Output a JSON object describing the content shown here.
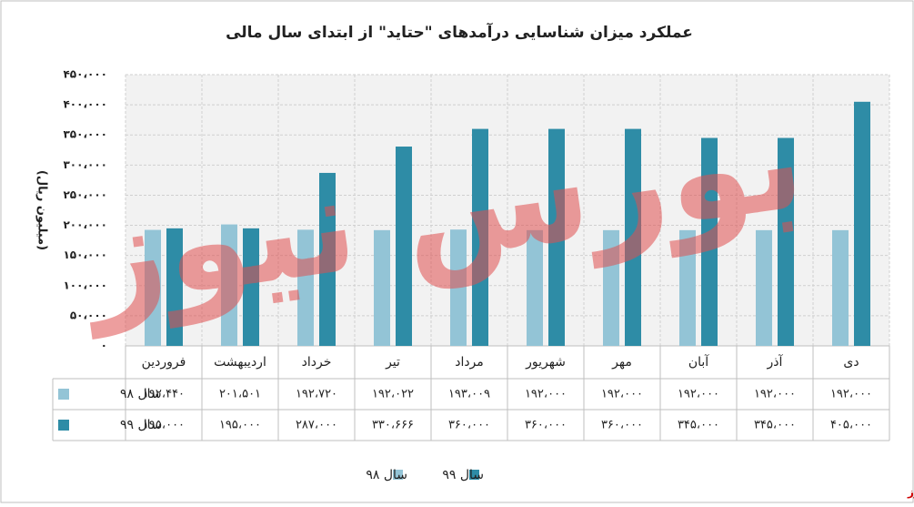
{
  "chart_data": {
    "type": "bar",
    "title": "عملکرد میزان شناسایی درآمدهای \"حتاید\" از ابتدای سال مالی",
    "y_label": "(میلیون ریال)",
    "categories": [
      "فروردین",
      "اردیبهشت",
      "خرداد",
      "تیر",
      "مرداد",
      "شهریور",
      "مهر",
      "آبان",
      "آذر",
      "دی"
    ],
    "series": [
      {
        "name": "سال ۹۸",
        "color": "#93c4d6",
        "values": [
          192440,
          201501,
          192720,
          192022,
          193009,
          192000,
          192000,
          192000,
          192000,
          192000
        ],
        "value_labels": [
          "۱۹۲،۴۴۰",
          "۲۰۱،۵۰۱",
          "۱۹۲،۷۲۰",
          "۱۹۲،۰۲۲",
          "۱۹۳،۰۰۹",
          "۱۹۲،۰۰۰",
          "۱۹۲،۰۰۰",
          "۱۹۲،۰۰۰",
          "۱۹۲،۰۰۰",
          "۱۹۲،۰۰۰"
        ]
      },
      {
        "name": "سال ۹۹",
        "color": "#2e8ca6",
        "values": [
          195000,
          195000,
          287000,
          330666,
          360000,
          360000,
          360000,
          345000,
          345000,
          405000
        ],
        "value_labels": [
          "۱۹۵،۰۰۰",
          "۱۹۵،۰۰۰",
          "۲۸۷،۰۰۰",
          "۳۳۰،۶۶۶",
          "۳۶۰،۰۰۰",
          "۳۶۰،۰۰۰",
          "۳۶۰،۰۰۰",
          "۳۴۵،۰۰۰",
          "۳۴۵،۰۰۰",
          "۴۰۵،۰۰۰"
        ]
      }
    ],
    "ylim": [
      0,
      450000
    ],
    "yticks": [
      {
        "value": 0,
        "label": "۰"
      },
      {
        "value": 50000,
        "label": "۵۰،۰۰۰"
      },
      {
        "value": 100000,
        "label": "۱۰۰،۰۰۰"
      },
      {
        "value": 150000,
        "label": "۱۵۰،۰۰۰"
      },
      {
        "value": 200000,
        "label": "۲۰۰،۰۰۰"
      },
      {
        "value": 250000,
        "label": "۲۵۰،۰۰۰"
      },
      {
        "value": 300000,
        "label": "۳۰۰،۰۰۰"
      },
      {
        "value": 350000,
        "label": "۳۵۰،۰۰۰"
      },
      {
        "value": 400000,
        "label": "۴۰۰،۰۰۰"
      },
      {
        "value": 450000,
        "label": "۴۵۰،۰۰۰"
      }
    ],
    "grid": true,
    "watermark": "بورس نیوز",
    "source": "بورس نیوز"
  }
}
